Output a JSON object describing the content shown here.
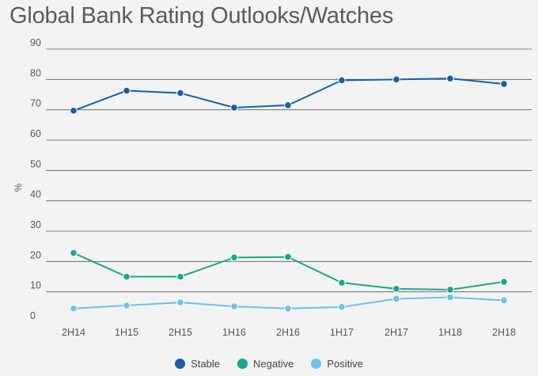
{
  "chart_data": {
    "type": "line",
    "title": "Global Bank Rating Outlooks/Watches",
    "xlabel": "",
    "ylabel": "%",
    "ylim": [
      0,
      90
    ],
    "yticks": [
      0,
      10,
      20,
      30,
      40,
      50,
      60,
      70,
      80,
      90
    ],
    "categories": [
      "2H14",
      "1H15",
      "2H15",
      "1H16",
      "2H16",
      "1H17",
      "2H17",
      "1H18",
      "2H18"
    ],
    "series": [
      {
        "name": "Stable",
        "color": "#1760a5",
        "values": [
          69.7,
          76.3,
          75.5,
          70.7,
          71.5,
          79.7,
          80.0,
          80.3,
          78.5
        ]
      },
      {
        "name": "Negative",
        "color": "#1aa88c",
        "values": [
          22.8,
          15.0,
          15.0,
          21.3,
          21.5,
          13.0,
          11.0,
          10.7,
          13.3
        ]
      },
      {
        "name": "Positive",
        "color": "#6ec1e8",
        "values": [
          4.5,
          5.5,
          6.5,
          5.2,
          4.5,
          5.0,
          7.7,
          8.2,
          7.2
        ]
      }
    ],
    "grid": true,
    "legend": "bottom-center"
  }
}
